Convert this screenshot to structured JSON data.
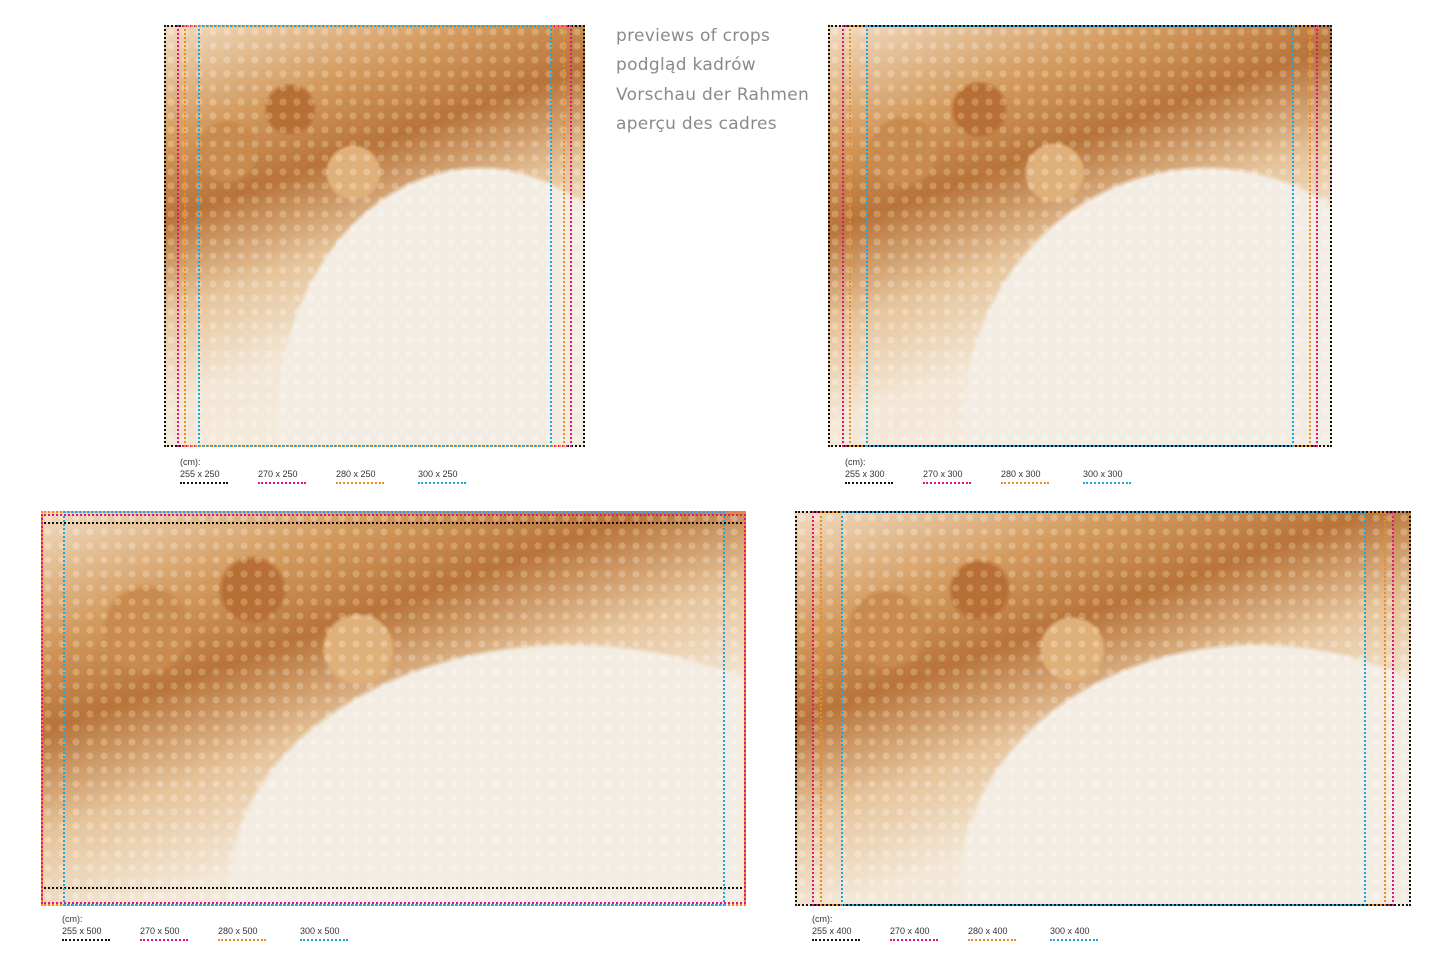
{
  "heading": {
    "lines": [
      "previews of crops",
      "podgląd kadrów",
      "Vorschau der Rahmen",
      "aperçu des cadres"
    ]
  },
  "previews": [
    {
      "unit": "(cm):",
      "sizes": [
        "255 x 250",
        "270 x 250",
        "280 x 250",
        "300 x 250"
      ]
    },
    {
      "unit": "(cm):",
      "sizes": [
        "255 x 300",
        "270 x 300",
        "280 x 300",
        "300 x 300"
      ]
    },
    {
      "unit": "(cm):",
      "sizes": [
        "255 x 500",
        "270 x 500",
        "280 x 500",
        "300 x 500"
      ]
    },
    {
      "unit": "(cm):",
      "sizes": [
        "255 x 400",
        "270 x 400",
        "280 x 400",
        "300 x 400"
      ]
    }
  ],
  "colors": {
    "black": "#111111",
    "pink": "#e6137b",
    "orange": "#f08c1a",
    "blue": "#1ea6e0"
  }
}
